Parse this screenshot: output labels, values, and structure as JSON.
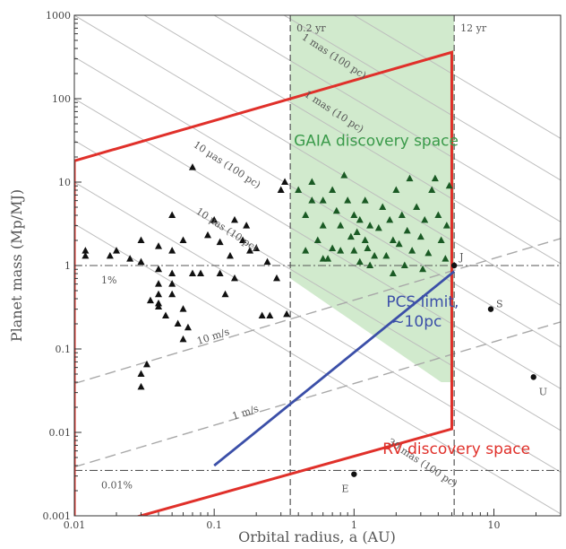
{
  "chart_data": {
    "type": "scatter",
    "x_scale": "log",
    "y_scale": "log",
    "xlim": [
      0.01,
      30
    ],
    "ylim": [
      0.001,
      1000
    ],
    "xlabel": "Orbital radius, a (AU)",
    "ylabel": "Planet mass (Mp/MJ)",
    "x_ticks": [
      {
        "value": 0.01,
        "label": "0.01"
      },
      {
        "value": 0.1,
        "label": "0.1"
      },
      {
        "value": 1,
        "label": "1"
      },
      {
        "value": 10,
        "label": "10"
      }
    ],
    "y_ticks": [
      {
        "value": 0.001,
        "label": "0.001"
      },
      {
        "value": 0.01,
        "label": "0.01"
      },
      {
        "value": 0.1,
        "label": "0.1"
      },
      {
        "value": 1,
        "label": "1"
      },
      {
        "value": 10,
        "label": "10"
      },
      {
        "value": 100,
        "label": "100"
      },
      {
        "value": 1000,
        "label": "1000"
      }
    ],
    "grid": false,
    "vertical_lines": [
      {
        "x": 0.35,
        "label": "0.2 yr"
      },
      {
        "x": 5.2,
        "label": "12 yr"
      }
    ],
    "horizontal_lines": [
      {
        "y": 1,
        "label": "1%"
      },
      {
        "y": 0.0035,
        "label": "0.01%"
      }
    ],
    "diagonal_labels": [
      {
        "text": "1 mas (100 pc)",
        "x": 0.7,
        "y": 300
      },
      {
        "text": "1 mas (10 pc)",
        "x": 0.7,
        "y": 65
      },
      {
        "text": "10 μas (100 pc)",
        "x": 0.12,
        "y": 15
      },
      {
        "text": "10 μas (10 pc)",
        "x": 0.12,
        "y": 2.5
      },
      {
        "text": "30 mas (100 pc)",
        "x": 3,
        "y": 0.004
      },
      {
        "text": "10 m/s",
        "x": 0.1,
        "y": 0.13
      },
      {
        "text": "1 m/s",
        "x": 0.17,
        "y": 0.016
      }
    ],
    "regions": {
      "gaia": {
        "label": "GAIA discovery space",
        "color": "#c9e6c4",
        "polygon": [
          [
            0.35,
            1000
          ],
          [
            5.2,
            1000
          ],
          [
            5.2,
            0.04
          ],
          [
            4.2,
            0.04
          ],
          [
            0.35,
            0.7
          ]
        ]
      },
      "rv": {
        "label": "RV discovery space",
        "color": "#e0302a",
        "polygon": [
          [
            0.01,
            18
          ],
          [
            5,
            360
          ],
          [
            5,
            0.011
          ],
          [
            0.01,
            0.0006
          ]
        ]
      },
      "pcs": {
        "label": "PCS limit, ~10pc",
        "color": "#3b4fa8",
        "line": [
          [
            0.1,
            0.004
          ],
          [
            5.2,
            0.85
          ]
        ]
      }
    },
    "series": [
      {
        "marker": "triangle",
        "color": "#111111",
        "points": [
          [
            0.012,
            1.5
          ],
          [
            0.012,
            1.3
          ],
          [
            0.02,
            1.5
          ],
          [
            0.018,
            1.3
          ],
          [
            0.025,
            1.2
          ],
          [
            0.03,
            2
          ],
          [
            0.03,
            1.1
          ],
          [
            0.04,
            1.7
          ],
          [
            0.05,
            4
          ],
          [
            0.05,
            1.5
          ],
          [
            0.05,
            0.8
          ],
          [
            0.05,
            0.6
          ],
          [
            0.05,
            0.45
          ],
          [
            0.04,
            0.9
          ],
          [
            0.04,
            0.6
          ],
          [
            0.04,
            0.45
          ],
          [
            0.04,
            0.35
          ],
          [
            0.045,
            0.25
          ],
          [
            0.06,
            2
          ],
          [
            0.055,
            0.2
          ],
          [
            0.06,
            0.13
          ],
          [
            0.07,
            15
          ],
          [
            0.07,
            0.8
          ],
          [
            0.08,
            0.8
          ],
          [
            0.09,
            2.3
          ],
          [
            0.1,
            3.5
          ],
          [
            0.11,
            0.8
          ],
          [
            0.12,
            0.45
          ],
          [
            0.14,
            0.7
          ],
          [
            0.14,
            3.5
          ],
          [
            0.16,
            2
          ],
          [
            0.17,
            3
          ],
          [
            0.18,
            1.5
          ],
          [
            0.2,
            1.6
          ],
          [
            0.22,
            0.25
          ],
          [
            0.25,
            0.25
          ],
          [
            0.3,
            8
          ],
          [
            0.32,
            10
          ],
          [
            0.03,
            0.035
          ],
          [
            0.03,
            0.05
          ],
          [
            0.033,
            0.065
          ],
          [
            0.065,
            0.18
          ],
          [
            0.04,
            0.32
          ],
          [
            0.035,
            0.38
          ],
          [
            0.06,
            0.3
          ],
          [
            0.11,
            1.9
          ],
          [
            0.13,
            1.3
          ],
          [
            0.24,
            1.1
          ],
          [
            0.33,
            0.26
          ],
          [
            0.28,
            0.7
          ]
        ]
      },
      {
        "marker": "triangle",
        "color": "#1a5a24",
        "points": [
          [
            0.4,
            8
          ],
          [
            0.45,
            4
          ],
          [
            0.45,
            1.5
          ],
          [
            0.5,
            6
          ],
          [
            0.55,
            2
          ],
          [
            0.6,
            3
          ],
          [
            0.6,
            6
          ],
          [
            0.65,
            1.2
          ],
          [
            0.7,
            8
          ],
          [
            0.75,
            4.5
          ],
          [
            0.8,
            3
          ],
          [
            0.8,
            1.5
          ],
          [
            0.85,
            12
          ],
          [
            0.9,
            6
          ],
          [
            0.95,
            2.2
          ],
          [
            1,
            4
          ],
          [
            1,
            1.5
          ],
          [
            1.05,
            2.5
          ],
          [
            1.1,
            3.5
          ],
          [
            1.1,
            1.1
          ],
          [
            1.2,
            2
          ],
          [
            1.2,
            6
          ],
          [
            1.25,
            1.6
          ],
          [
            1.3,
            3
          ],
          [
            1.4,
            1.3
          ],
          [
            1.5,
            2.8
          ],
          [
            1.6,
            5
          ],
          [
            1.7,
            1.3
          ],
          [
            1.8,
            3.5
          ],
          [
            1.9,
            2
          ],
          [
            2,
            8
          ],
          [
            2.1,
            1.8
          ],
          [
            2.2,
            4
          ],
          [
            2.4,
            2.6
          ],
          [
            2.5,
            11
          ],
          [
            2.6,
            1.5
          ],
          [
            2.8,
            5
          ],
          [
            3,
            2.2
          ],
          [
            3.2,
            3.5
          ],
          [
            3.4,
            1.4
          ],
          [
            3.6,
            8
          ],
          [
            3.8,
            11
          ],
          [
            4,
            4
          ],
          [
            4.2,
            2
          ],
          [
            4.5,
            1.2
          ],
          [
            4.6,
            3
          ],
          [
            4.8,
            9
          ],
          [
            0.5,
            10
          ],
          [
            0.6,
            1.2
          ],
          [
            0.7,
            1.6
          ],
          [
            1.3,
            1
          ],
          [
            2.3,
            1
          ],
          [
            1.9,
            0.8
          ],
          [
            3.1,
            0.9
          ]
        ]
      }
    ],
    "solar_system": [
      {
        "label": "J",
        "x": 5.2,
        "y": 1
      },
      {
        "label": "S",
        "x": 9.5,
        "y": 0.3
      },
      {
        "label": "U",
        "x": 19.2,
        "y": 0.046
      },
      {
        "label": "E",
        "x": 1,
        "y": 0.00315
      }
    ]
  }
}
